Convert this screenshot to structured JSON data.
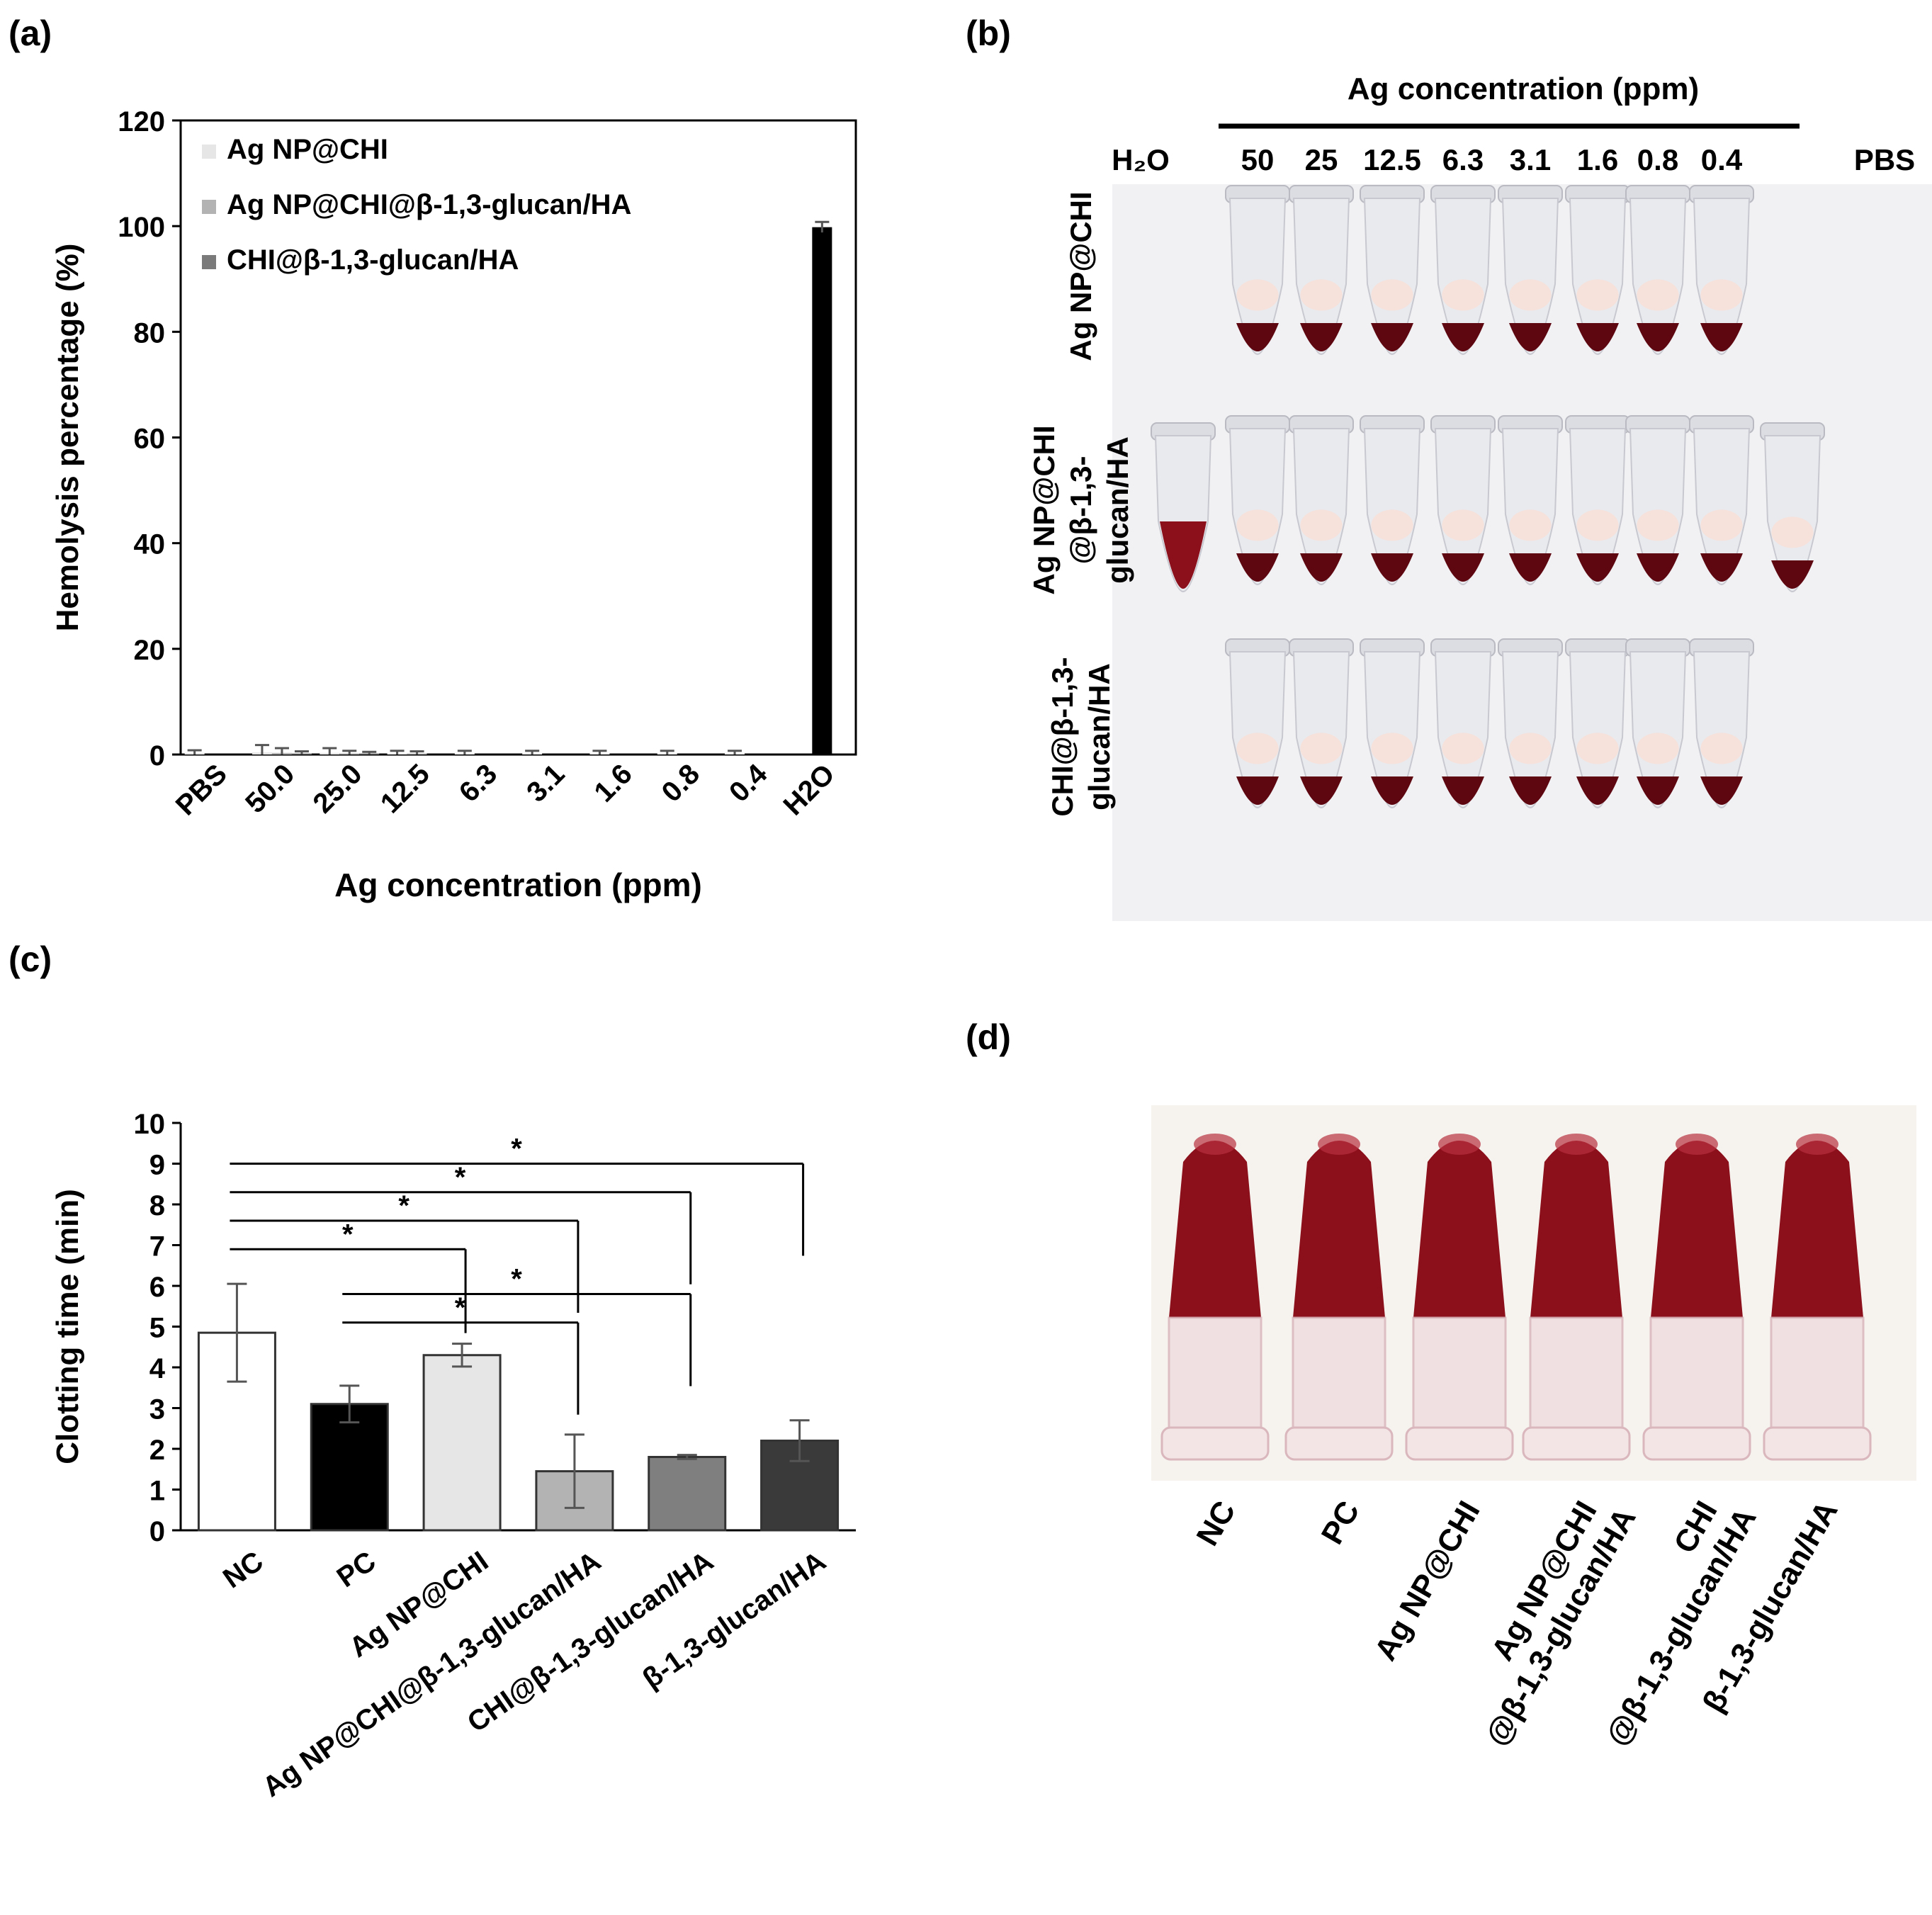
{
  "panel_labels": {
    "a": "(a)",
    "b": "(b)",
    "c": "(c)",
    "d": "(d)"
  },
  "chart_data": [
    {
      "type": "bar",
      "xlabel": "Ag concentration (ppm)",
      "ylabel": "Hemolysis percentage (%)",
      "ylim": [
        0,
        120
      ],
      "yticks": [
        0,
        20,
        40,
        60,
        80,
        100,
        120
      ],
      "categories": [
        "PBS",
        "50.0",
        "25.0",
        "12.5",
        "6.3",
        "3.1",
        "1.6",
        "0.8",
        "0.4",
        "H2O"
      ],
      "legend_position": "top-left",
      "grid": false,
      "series": [
        {
          "name": "Ag NP@CHI",
          "color": "#e6e6e6",
          "values": [
            0.3,
            0.4,
            0.3,
            0.2,
            0.2,
            0.2,
            0.2,
            0.2,
            0.2,
            null
          ],
          "errors": [
            0.5,
            1.4,
            0.9,
            0.5,
            0.5,
            0.5,
            0.5,
            0.5,
            0.5,
            null
          ]
        },
        {
          "name": "Ag NP@CHI@β-1,3-glucan/HA",
          "color": "#b3b3b3",
          "values": [
            null,
            0.3,
            0.2,
            0.2,
            null,
            null,
            null,
            null,
            null,
            99.8
          ],
          "errors": [
            null,
            0.9,
            0.5,
            0.4,
            null,
            null,
            null,
            null,
            null,
            1.0
          ]
        },
        {
          "name": "CHI@β-1,3-glucan/HA",
          "color": "#7a7a7a",
          "values": [
            null,
            0.2,
            0.2,
            null,
            null,
            null,
            null,
            null,
            null,
            null
          ],
          "errors": [
            null,
            0.4,
            0.3,
            null,
            null,
            null,
            null,
            null,
            null,
            null
          ]
        }
      ],
      "h2o_bar_color": "#000000"
    },
    {
      "type": "bar",
      "xlabel": "",
      "ylabel": "Clotting time (min)",
      "ylim": [
        0,
        10
      ],
      "yticks": [
        0,
        1,
        2,
        3,
        4,
        5,
        6,
        7,
        8,
        9,
        10
      ],
      "grid": false,
      "categories": [
        "NC",
        "PC",
        "Ag NP@CHI",
        "Ag NP@CHI@β-1,3-glucan/HA",
        "CHI@β-1,3-glucan/HA",
        "β-1,3-glucan/HA"
      ],
      "values": [
        4.85,
        3.1,
        4.3,
        1.45,
        1.8,
        2.2
      ],
      "errors": [
        1.2,
        0.45,
        0.28,
        0.9,
        0.05,
        0.5
      ],
      "colors": [
        "#ffffff",
        "#000000",
        "#e6e6e6",
        "#b3b3b3",
        "#7f7f7f",
        "#3a3a3a"
      ],
      "significance": [
        {
          "from": 0,
          "to": 5,
          "label": "*"
        },
        {
          "from": 0,
          "to": 4,
          "label": "*"
        },
        {
          "from": 0,
          "to": 3,
          "label": "*"
        },
        {
          "from": 0,
          "to": 2,
          "label": "*"
        },
        {
          "from": 1,
          "to": 4,
          "label": "*"
        },
        {
          "from": 1,
          "to": 3,
          "label": "*"
        }
      ]
    }
  ],
  "photo_b": {
    "header": "Ag concentration (ppm)",
    "h2o_label": "H₂O",
    "pbs_label": "PBS",
    "concentrations": [
      "50",
      "25",
      "12.5",
      "6.3",
      "3.1",
      "1.6",
      "0.8",
      "0.4"
    ],
    "row_labels": [
      [
        "Ag NP@CHI"
      ],
      [
        "Ag NP@CHI",
        "@β-1,3-",
        "glucan/HA"
      ],
      [
        "CHI@β-1,3-",
        "glucan/HA"
      ]
    ]
  },
  "photo_d": {
    "labels": [
      [
        "NC"
      ],
      [
        "PC"
      ],
      [
        "Ag NP@CHI"
      ],
      [
        "Ag NP@CHI",
        "@β-1,3-glucan/HA"
      ],
      [
        "CHI",
        "@β-1,3-glucan/HA"
      ],
      [
        "β-1,3-glucan/HA"
      ]
    ]
  },
  "colors": {
    "blood": "#8c0f1c",
    "blood_dark": "#5e0711",
    "tube": "#e9eaee"
  }
}
